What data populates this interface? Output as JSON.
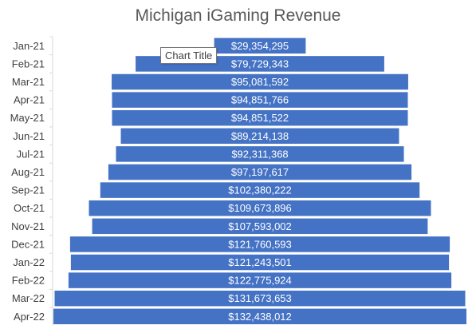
{
  "chart_data": {
    "type": "bar",
    "orientation": "horizontal",
    "style": "funnel",
    "title": "Michigan iGaming Revenue",
    "categories": [
      "Jan-21",
      "Feb-21",
      "Mar-21",
      "Apr-21",
      "May-21",
      "Jun-21",
      "Jul-21",
      "Aug-21",
      "Sep-21",
      "Oct-21",
      "Nov-21",
      "Dec-21",
      "Jan-22",
      "Feb-22",
      "Mar-22",
      "Apr-22"
    ],
    "values": [
      29354295,
      79729343,
      95081592,
      94851766,
      94851522,
      89214138,
      92311368,
      97197617,
      102380222,
      109673896,
      107593002,
      121760593,
      121243501,
      122775924,
      131673653,
      132438012
    ],
    "data_labels": [
      "$29,354,295",
      "$79,729,343",
      "$95,081,592",
      "$94,851,766",
      "$94,851,522",
      "$89,214,138",
      "$92,311,368",
      "$97,197,617",
      "$102,380,222",
      "$109,673,896",
      "$107,593,002",
      "$121,760,593",
      "$121,243,501",
      "$122,775,924",
      "$131,673,653",
      "$132,438,012"
    ],
    "bar_color": "#4472C4",
    "label_color": "#ffffff",
    "grid": false,
    "legend": "none"
  },
  "tooltip": {
    "text": "Chart Title"
  }
}
